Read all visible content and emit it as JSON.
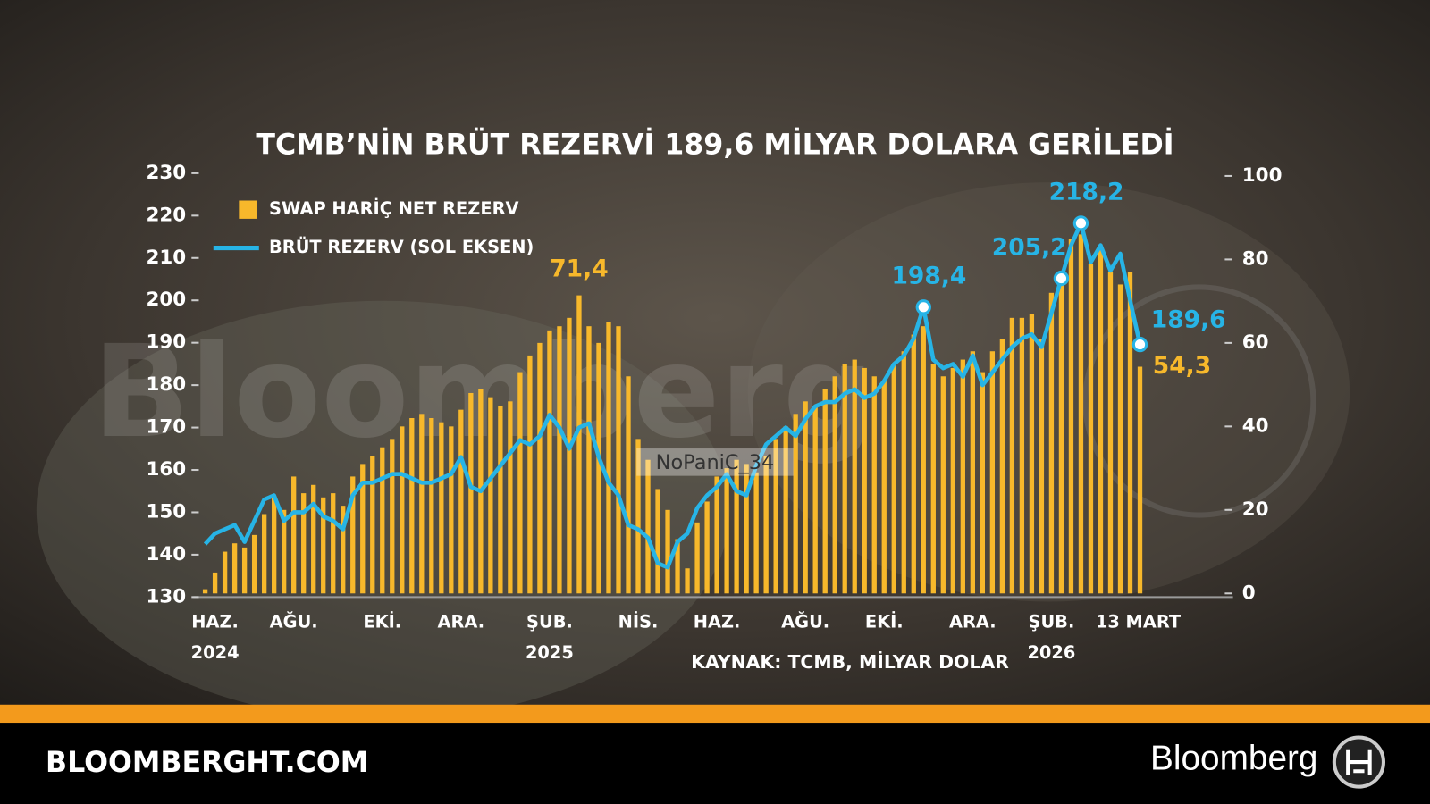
{
  "chart_data": {
    "type": "combo",
    "title": "TCMB’NİN BRÜT REZERVİ 189,6 MİLYAR DOLARA GERİLEDİ",
    "source": "KAYNAK: TCMB, MİLYAR DOLAR",
    "categories": [
      null,
      "HAZ.",
      null,
      null,
      null,
      null,
      null,
      null,
      null,
      "AĞU.",
      null,
      null,
      null,
      null,
      null,
      null,
      null,
      null,
      "EKİ.",
      null,
      null,
      null,
      null,
      null,
      null,
      null,
      "ARA.",
      null,
      null,
      null,
      null,
      null,
      null,
      null,
      null,
      "ŞUB.",
      null,
      null,
      null,
      null,
      null,
      null,
      null,
      null,
      "NİS.",
      null,
      null,
      null,
      null,
      null,
      null,
      null,
      "HAZ.",
      null,
      null,
      null,
      null,
      null,
      null,
      null,
      null,
      "AĞU.",
      null,
      null,
      null,
      null,
      null,
      null,
      null,
      "EKİ.",
      null,
      null,
      null,
      null,
      null,
      null,
      null,
      null,
      "ARA.",
      null,
      null,
      null,
      null,
      null,
      null,
      null,
      "ŞUB.",
      null,
      null,
      null,
      null,
      null,
      null,
      null,
      null,
      "13 MART"
    ],
    "category_years": [
      null,
      "2024",
      null,
      null,
      null,
      null,
      null,
      null,
      null,
      null,
      null,
      null,
      null,
      null,
      null,
      null,
      null,
      null,
      null,
      null,
      null,
      null,
      null,
      null,
      null,
      null,
      null,
      null,
      null,
      null,
      null,
      null,
      null,
      null,
      null,
      "2025",
      null,
      null,
      null,
      null,
      null,
      null,
      null,
      null,
      null,
      null,
      null,
      null,
      null,
      null,
      null,
      null,
      null,
      null,
      null,
      null,
      null,
      null,
      null,
      null,
      null,
      null,
      null,
      null,
      null,
      null,
      null,
      null,
      null,
      null,
      null,
      null,
      null,
      null,
      null,
      null,
      null,
      null,
      null,
      null,
      null,
      null,
      null,
      null,
      null,
      null,
      "2026",
      null,
      null,
      null,
      null,
      null,
      null,
      null,
      null,
      null
    ],
    "series": [
      {
        "name": "SWAP HARİÇ NET REZERV",
        "type": "bar",
        "axis": "y2",
        "color": "#f7b82b",
        "values": [
          1,
          5,
          10,
          12,
          11,
          14,
          19,
          23,
          20,
          28,
          24,
          26,
          23,
          24,
          21,
          28,
          31,
          33,
          35,
          37,
          40,
          42,
          43,
          42,
          41,
          40,
          44,
          48,
          49,
          47,
          45,
          46,
          53,
          57,
          60,
          63,
          64,
          66,
          71.4,
          64,
          60,
          65,
          64,
          52,
          37,
          32,
          25,
          20,
          13,
          6,
          17,
          22,
          28,
          30,
          32,
          31,
          29,
          33,
          37,
          40,
          43,
          46,
          45,
          49,
          52,
          55,
          56,
          54,
          52,
          51,
          55,
          58,
          62,
          64,
          55,
          52,
          54,
          56,
          58,
          53,
          58,
          61,
          66,
          66,
          67,
          61,
          72,
          76,
          85,
          86,
          79,
          83,
          77,
          74,
          77,
          54.3
        ],
        "value_labels": [
          null,
          null,
          null,
          null,
          null,
          null,
          null,
          null,
          null,
          null,
          null,
          null,
          null,
          null,
          null,
          null,
          null,
          null,
          null,
          null,
          null,
          null,
          null,
          null,
          null,
          null,
          null,
          null,
          null,
          null,
          null,
          null,
          null,
          null,
          null,
          null,
          null,
          null,
          "71,4",
          null,
          null,
          null,
          null,
          null,
          null,
          null,
          null,
          null,
          null,
          null,
          null,
          null,
          null,
          null,
          null,
          null,
          null,
          null,
          null,
          null,
          null,
          null,
          null,
          null,
          null,
          null,
          null,
          null,
          null,
          null,
          null,
          null,
          null,
          null,
          null,
          null,
          null,
          null,
          null,
          null,
          null,
          null,
          null,
          null,
          null,
          null,
          null,
          null,
          null,
          null,
          null,
          null,
          null,
          null,
          null,
          "54,3"
        ]
      },
      {
        "name": "BRÜT REZERV (SOL EKSEN)",
        "type": "line",
        "axis": "y",
        "color": "#27b4e6",
        "values": [
          142.5,
          145,
          146,
          147,
          143,
          148,
          153,
          154,
          148,
          150,
          150,
          152,
          149,
          148,
          146,
          154,
          157,
          157,
          158,
          159,
          159,
          158,
          157,
          157,
          158,
          159,
          163,
          156,
          155,
          158,
          161,
          164,
          167,
          166,
          168,
          173,
          170,
          165,
          170,
          171,
          163,
          157,
          154,
          147,
          146,
          144,
          138,
          137,
          143,
          145,
          151,
          154,
          156,
          159,
          155,
          154,
          161,
          166,
          168,
          170,
          168,
          172,
          175,
          176,
          176,
          178,
          179,
          177,
          178,
          181,
          185,
          187,
          191,
          198.4,
          186,
          184,
          185,
          182,
          187,
          180,
          183,
          186,
          189,
          191,
          192,
          189,
          197,
          205.2,
          213,
          218.2,
          209,
          213,
          207,
          211,
          200,
          189.6
        ],
        "value_labels": [
          null,
          null,
          null,
          null,
          null,
          null,
          null,
          null,
          null,
          null,
          null,
          null,
          null,
          null,
          null,
          null,
          null,
          null,
          null,
          null,
          null,
          null,
          null,
          null,
          null,
          null,
          null,
          null,
          null,
          null,
          null,
          null,
          null,
          null,
          null,
          null,
          null,
          null,
          null,
          null,
          null,
          null,
          null,
          null,
          null,
          null,
          null,
          null,
          null,
          null,
          null,
          null,
          null,
          null,
          null,
          null,
          null,
          null,
          null,
          null,
          null,
          null,
          null,
          null,
          null,
          null,
          null,
          null,
          null,
          null,
          null,
          null,
          null,
          "198,4",
          null,
          null,
          null,
          null,
          null,
          null,
          null,
          null,
          null,
          null,
          null,
          null,
          null,
          "205,2",
          null,
          "218,2",
          null,
          null,
          null,
          null,
          null,
          "189,6"
        ]
      }
    ],
    "ylim": [
      130,
      230
    ],
    "yticks": [
      130,
      140,
      150,
      160,
      170,
      180,
      190,
      200,
      210,
      220,
      230
    ],
    "y2lim": [
      0,
      100
    ],
    "y2ticks": [
      0,
      20,
      40,
      60,
      80,
      100
    ],
    "legend": "top-left",
    "watermark": "NoPaniC_34",
    "footer": {
      "site": "BLOOMBERGHT.COM",
      "brand": "Bloomberg"
    }
  }
}
